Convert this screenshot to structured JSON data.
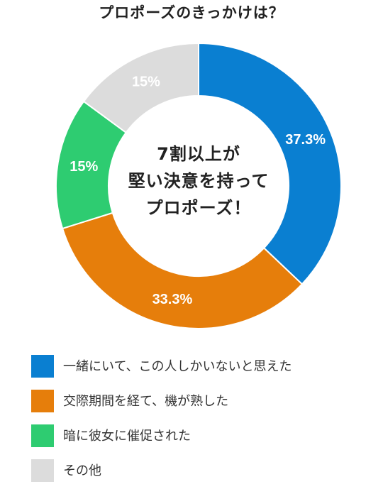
{
  "chart_data": {
    "type": "pie",
    "title": "プロポーズのきっかけは？",
    "center_text": [
      "7割以上が",
      "堅い決意を持って",
      "プロポーズ！"
    ],
    "slices": [
      {
        "label": "一緒にいて、この人しかいないと思えた",
        "value": 37.3,
        "display": "37.3%",
        "color": "#0a7fd1"
      },
      {
        "label": "交際期間を経て、機が熟した",
        "value": 33.3,
        "display": "33.3%",
        "color": "#e67e0b"
      },
      {
        "label": "暗に彼女に催促された",
        "value": 15,
        "display": "15%",
        "color": "#2ecc71"
      },
      {
        "label": "その他",
        "value": 15,
        "display": "15%",
        "color": "#dcdcdc"
      }
    ],
    "legend_position": "bottom-left",
    "start": "top",
    "direction": "clockwise"
  }
}
